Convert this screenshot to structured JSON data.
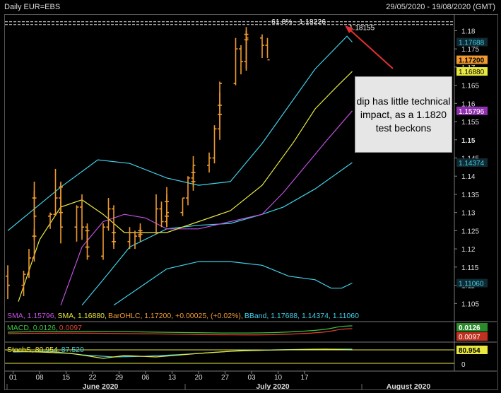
{
  "header": {
    "title": "Daily EUR=EBS",
    "date_range": "29/05/2020 - 19/08/2020 (GMT)"
  },
  "annotation": {
    "text": "dip has little technical impact, as a 1.1820 test beckons"
  },
  "fib_label": "61.8% - 1.18226",
  "high_label": "1.18155",
  "legends": {
    "price": [
      {
        "text": "SMA, 1.15796,",
        "color": "#c050e0"
      },
      {
        "text": "SMA, 1.16880,",
        "color": "#e8e840"
      },
      {
        "text": "BarOHLC, 1.17200, +0.00025, (+0.02%),",
        "color": "#f09a30"
      },
      {
        "text": "BBand, 1.17688, 1.14374, 1.11060",
        "color": "#40d0e8"
      }
    ],
    "macd": [
      {
        "text": "MACD, 0.0126,",
        "color": "#40c040"
      },
      {
        "text": "0.0097",
        "color": "#e04030"
      }
    ],
    "stoch": [
      {
        "text": "StochS, 80.954,",
        "color": "#e8e840"
      },
      {
        "text": "87.520",
        "color": "#40d0e8"
      }
    ]
  },
  "price_axis_labels": [
    "1.18",
    "1.175",
    "1.17",
    "1.165",
    "1.16",
    "1.155",
    "1.15",
    "1.145",
    "1.14",
    "1.135",
    "1.13",
    "1.125",
    "1.12",
    "1.115",
    "1.11",
    "1.105"
  ],
  "price_tags": [
    {
      "text": "1.17688",
      "bg": "#102a33",
      "fg": "#40d0e8"
    },
    {
      "text": "1.17200",
      "bg": "#f09a30",
      "fg": "#000000"
    },
    {
      "text": "1.16880",
      "bg": "#e8e840",
      "fg": "#000000"
    },
    {
      "text": "1.15796",
      "bg": "#9030b0",
      "fg": "#ffffff"
    },
    {
      "text": "1.14374",
      "bg": "#102a33",
      "fg": "#40d0e8"
    },
    {
      "text": "1.11060",
      "bg": "#102a33",
      "fg": "#40d0e8"
    }
  ],
  "macd_tags": [
    {
      "text": "0.0126",
      "bg": "#2a8a2a",
      "fg": "#ffffff"
    },
    {
      "text": "0.0097",
      "bg": "#c03020",
      "fg": "#ffffff"
    }
  ],
  "stoch_tags": [
    {
      "text": "80.954",
      "bg": "#e8e840",
      "fg": "#000000"
    },
    {
      "text": "0",
      "bg": "#000000",
      "fg": "#dddddd"
    }
  ],
  "x_day_labels": [
    "01",
    "08",
    "15",
    "22",
    "29",
    "06",
    "13",
    "20",
    "27",
    "03",
    "10",
    "17"
  ],
  "x_month_labels": [
    "June 2020",
    "July 2020",
    "August 2020"
  ],
  "chart_data": {
    "type": "line",
    "title": "Daily EUR=EBS",
    "y_range": [
      1.1,
      1.183
    ],
    "ohlc": [
      [
        "2020-05-29",
        1.1125,
        1.1155,
        1.1062,
        1.11
      ],
      [
        "2020-06-01",
        1.11,
        1.114,
        1.107,
        1.113
      ],
      [
        "2020-06-02",
        1.113,
        1.12,
        1.112,
        1.1175
      ],
      [
        "2020-06-03",
        1.1175,
        1.1255,
        1.1165,
        1.1235
      ],
      [
        "2020-06-04",
        1.1235,
        1.136,
        1.1225,
        1.134
      ],
      [
        "2020-06-05",
        1.134,
        1.1385,
        1.1285,
        1.129
      ],
      [
        "2020-06-08",
        1.129,
        1.13,
        1.1255,
        1.1295
      ],
      [
        "2020-06-09",
        1.1295,
        1.142,
        1.129,
        1.134
      ],
      [
        "2020-06-10",
        1.134,
        1.1385,
        1.1325,
        1.137
      ],
      [
        "2020-06-11",
        1.137,
        1.138,
        1.126,
        1.13
      ],
      [
        "2020-06-12",
        1.13,
        1.133,
        1.1215,
        1.126
      ],
      [
        "2020-06-15",
        1.126,
        1.132,
        1.122,
        1.1315
      ],
      [
        "2020-06-16",
        1.1315,
        1.135,
        1.1225,
        1.126
      ],
      [
        "2020-06-17",
        1.126,
        1.127,
        1.122,
        1.125
      ],
      [
        "2020-06-18",
        1.125,
        1.126,
        1.12,
        1.1205
      ],
      [
        "2020-06-19",
        1.1205,
        1.124,
        1.117,
        1.118
      ],
      [
        "2020-06-22",
        1.118,
        1.127,
        1.117,
        1.126
      ],
      [
        "2020-06-23",
        1.126,
        1.134,
        1.125,
        1.131
      ],
      [
        "2020-06-24",
        1.131,
        1.132,
        1.124,
        1.1245
      ],
      [
        "2020-06-25",
        1.1245,
        1.125,
        1.121,
        1.122
      ],
      [
        "2020-06-26",
        1.122,
        1.123,
        1.12,
        1.122
      ],
      [
        "2020-06-29",
        1.122,
        1.126,
        1.12,
        1.1245
      ],
      [
        "2020-06-30",
        1.1245,
        1.125,
        1.12,
        1.1235
      ],
      [
        "2020-07-01",
        1.1235,
        1.127,
        1.123,
        1.125
      ],
      [
        "2020-07-02",
        1.125,
        1.126,
        1.122,
        1.124
      ],
      [
        "2020-07-03",
        1.124,
        1.125,
        1.123,
        1.1245
      ],
      [
        "2020-07-06",
        1.1245,
        1.135,
        1.124,
        1.131
      ],
      [
        "2020-07-07",
        1.131,
        1.133,
        1.126,
        1.1275
      ],
      [
        "2020-07-08",
        1.1275,
        1.135,
        1.126,
        1.133
      ],
      [
        "2020-07-09",
        1.133,
        1.137,
        1.127,
        1.129
      ],
      [
        "2020-07-10",
        1.129,
        1.131,
        1.126,
        1.13
      ],
      [
        "2020-07-13",
        1.13,
        1.134,
        1.129,
        1.134
      ],
      [
        "2020-07-14",
        1.134,
        1.14,
        1.132,
        1.1395
      ],
      [
        "2020-07-15",
        1.1395,
        1.1455,
        1.137,
        1.141
      ],
      [
        "2020-07-16",
        1.141,
        1.142,
        1.138,
        1.1385
      ],
      [
        "2020-07-17",
        1.1385,
        1.143,
        1.136,
        1.143
      ],
      [
        "2020-07-20",
        1.143,
        1.1465,
        1.141,
        1.145
      ],
      [
        "2020-07-21",
        1.145,
        1.154,
        1.1435,
        1.153
      ],
      [
        "2020-07-22",
        1.153,
        1.16,
        1.15,
        1.157
      ],
      [
        "2020-07-23",
        1.157,
        1.163,
        1.153,
        1.1595
      ],
      [
        "2020-07-24",
        1.1595,
        1.166,
        1.1585,
        1.1655
      ],
      [
        "2020-07-27",
        1.1655,
        1.178,
        1.165,
        1.175
      ],
      [
        "2020-07-28",
        1.175,
        1.176,
        1.168,
        1.1715
      ],
      [
        "2020-07-29",
        1.1715,
        1.18,
        1.169,
        1.179
      ],
      [
        "2020-07-30",
        1.179,
        1.181,
        1.172,
        1.1775
      ],
      [
        "2020-07-31",
        1.1775,
        1.18,
        1.1695,
        1.178
      ],
      [
        "2020-08-03",
        1.178,
        1.179,
        1.1725,
        1.176
      ],
      [
        "2020-08-04",
        1.176,
        1.178,
        1.1725,
        1.172
      ]
    ],
    "sma_short_last": 1.1688,
    "sma_long_last": 1.15796,
    "bband_last": {
      "upper": 1.17688,
      "mid": 1.14374,
      "lower": 1.1106
    },
    "fib_level": {
      "label": "61.8%",
      "value": 1.18226
    },
    "high_marker": 1.18155,
    "macd": {
      "macd": 0.0126,
      "signal": 0.0097
    },
    "stoch": {
      "k": 80.954,
      "d": 87.52
    }
  }
}
